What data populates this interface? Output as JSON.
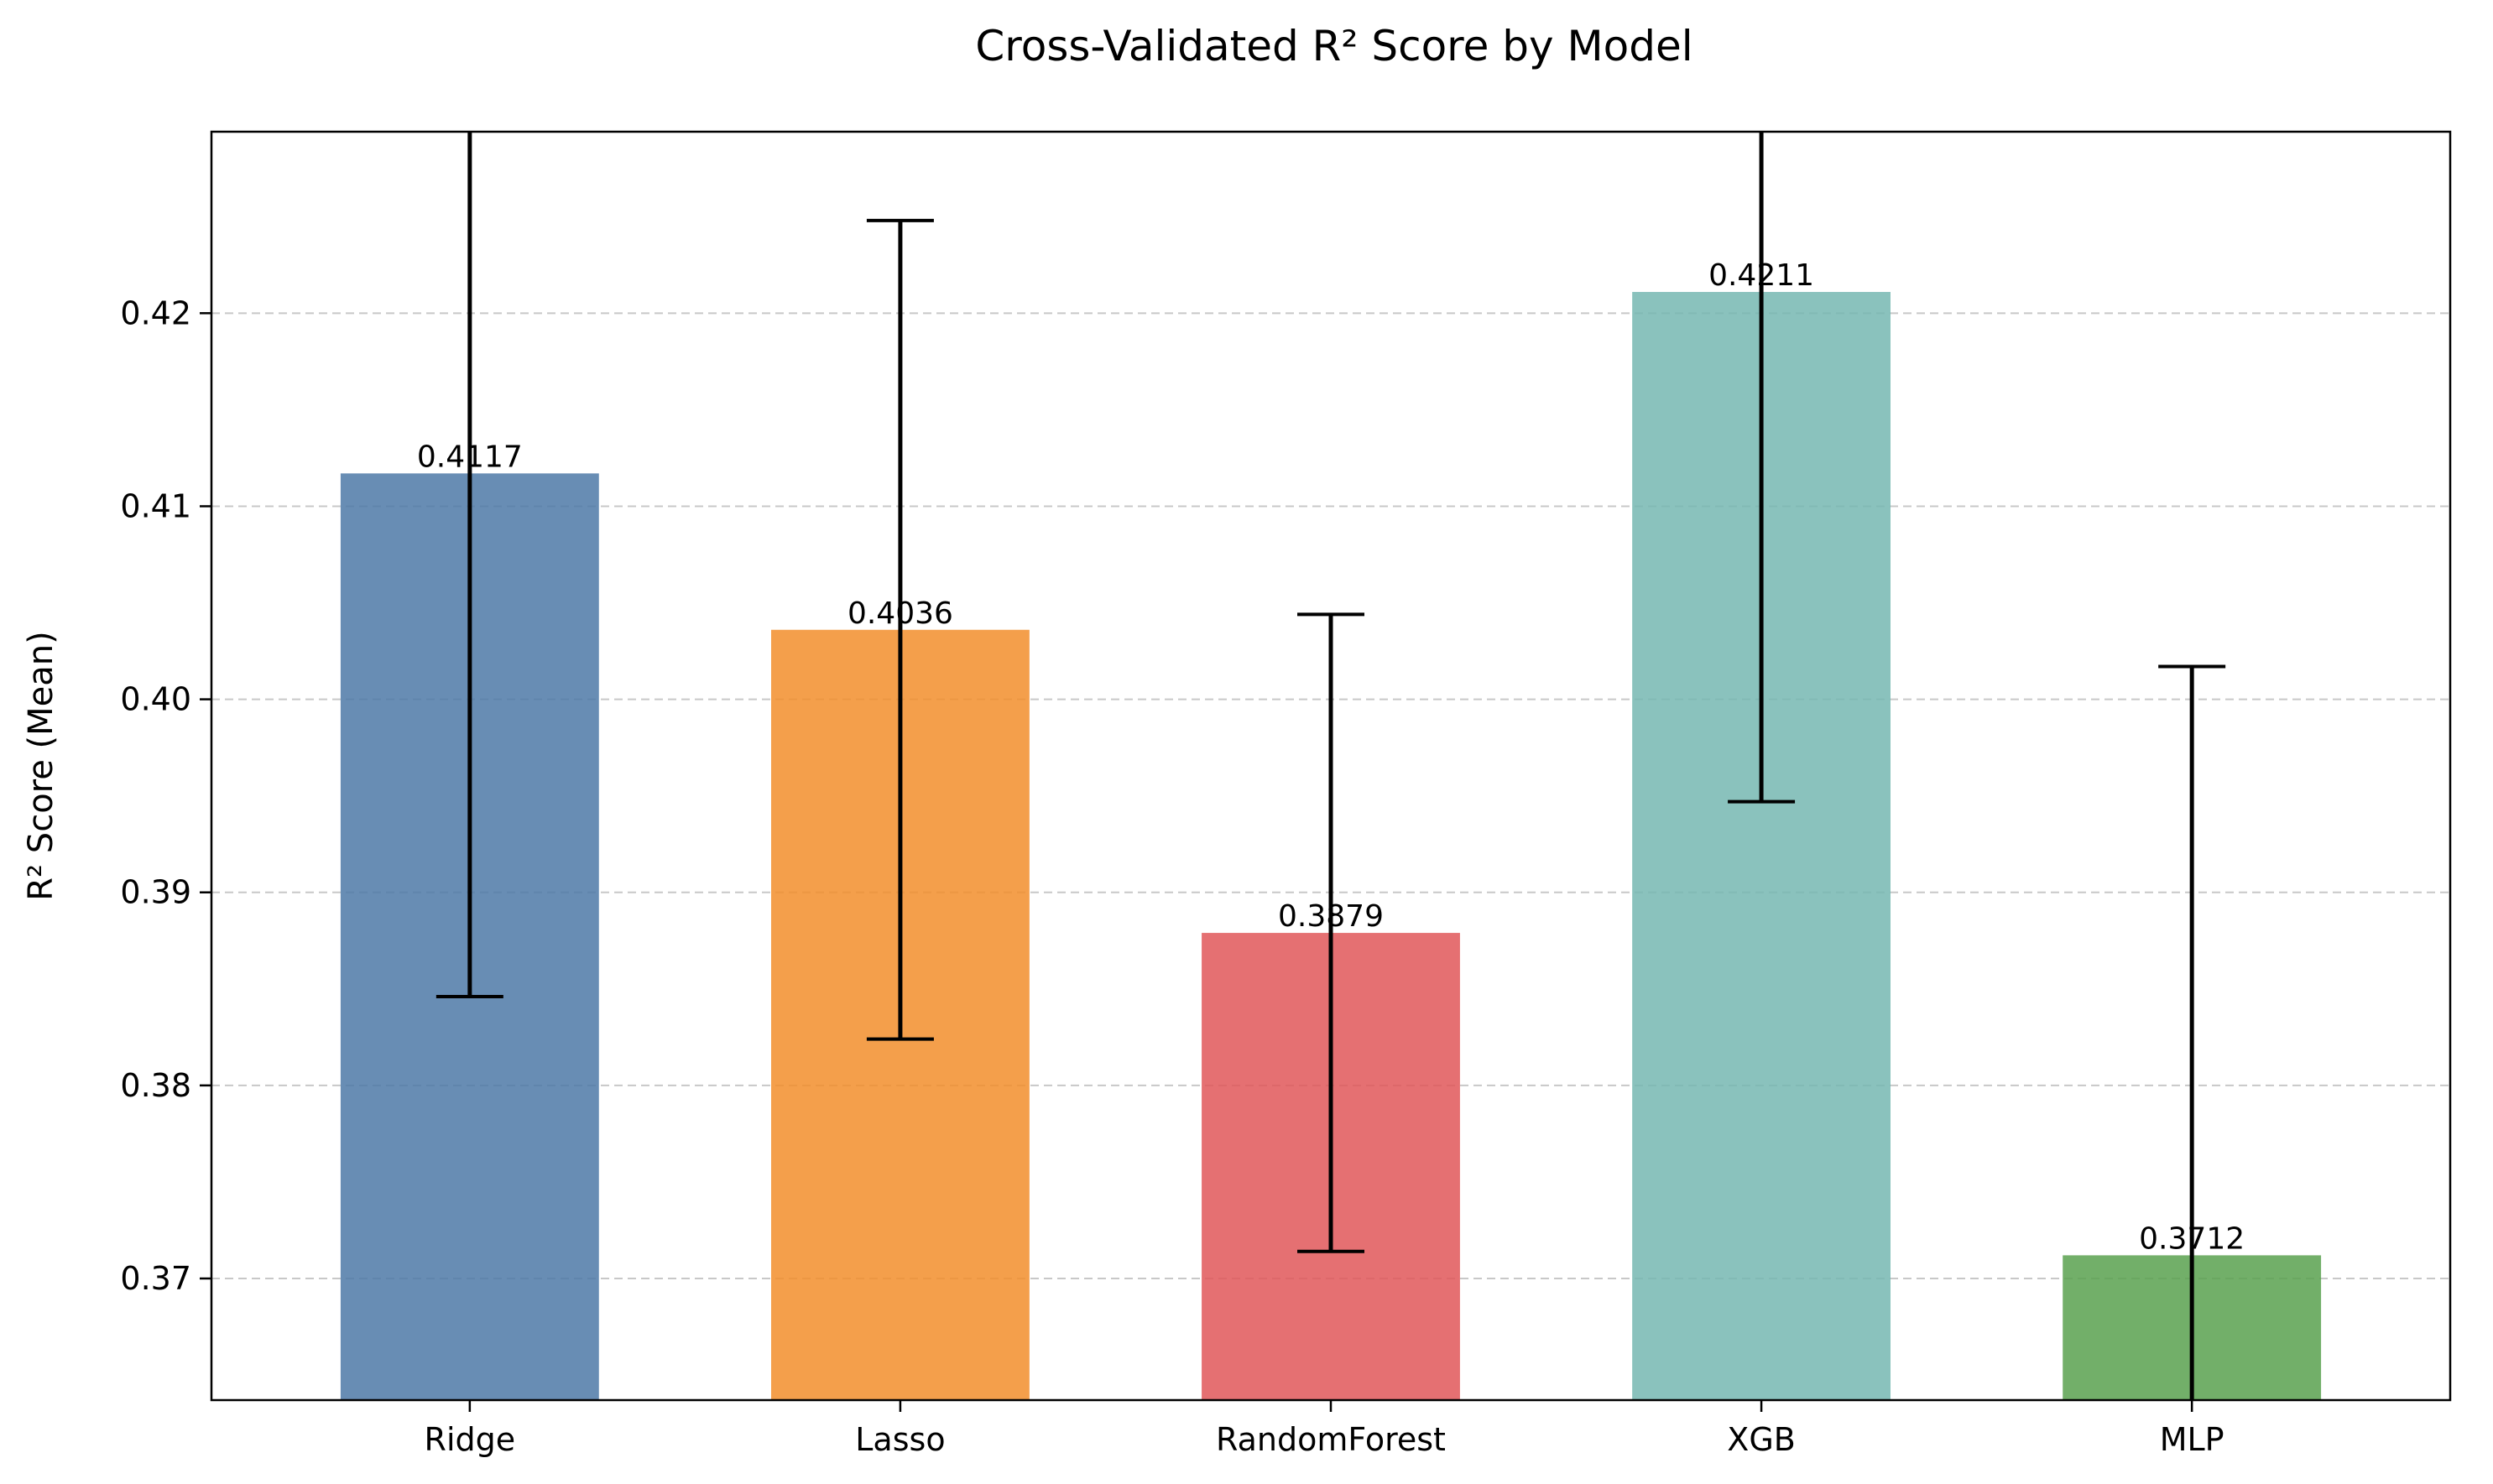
{
  "chart_data": {
    "type": "bar",
    "title": "Cross-Validated R² Score by Model",
    "xlabel": "",
    "ylabel": "R² Score (Mean)",
    "categories": [
      "Ridge",
      "Lasso",
      "RandomForest",
      "XGB",
      "MLP"
    ],
    "values": [
      0.4117,
      0.4036,
      0.3879,
      0.4211,
      0.3712
    ],
    "value_labels": [
      "0.4117",
      "0.4036",
      "0.3879",
      "0.4211",
      "0.3712"
    ],
    "error": [
      0.0271,
      0.0212,
      0.0165,
      0.0264,
      0.0305
    ],
    "colors": [
      "#4e79a7",
      "#f28e2b",
      "#e15759",
      "#76b7b2",
      "#59a14f"
    ],
    "bar_opacity": 0.85,
    "ylim": [
      0.3637,
      0.4294
    ],
    "yticks": [
      0.37,
      0.38,
      0.39,
      0.4,
      0.41,
      0.42
    ],
    "ytick_labels": [
      "0.37",
      "0.38",
      "0.39",
      "0.40",
      "0.41",
      "0.42"
    ],
    "grid": "y-dashed",
    "legend": "none"
  }
}
